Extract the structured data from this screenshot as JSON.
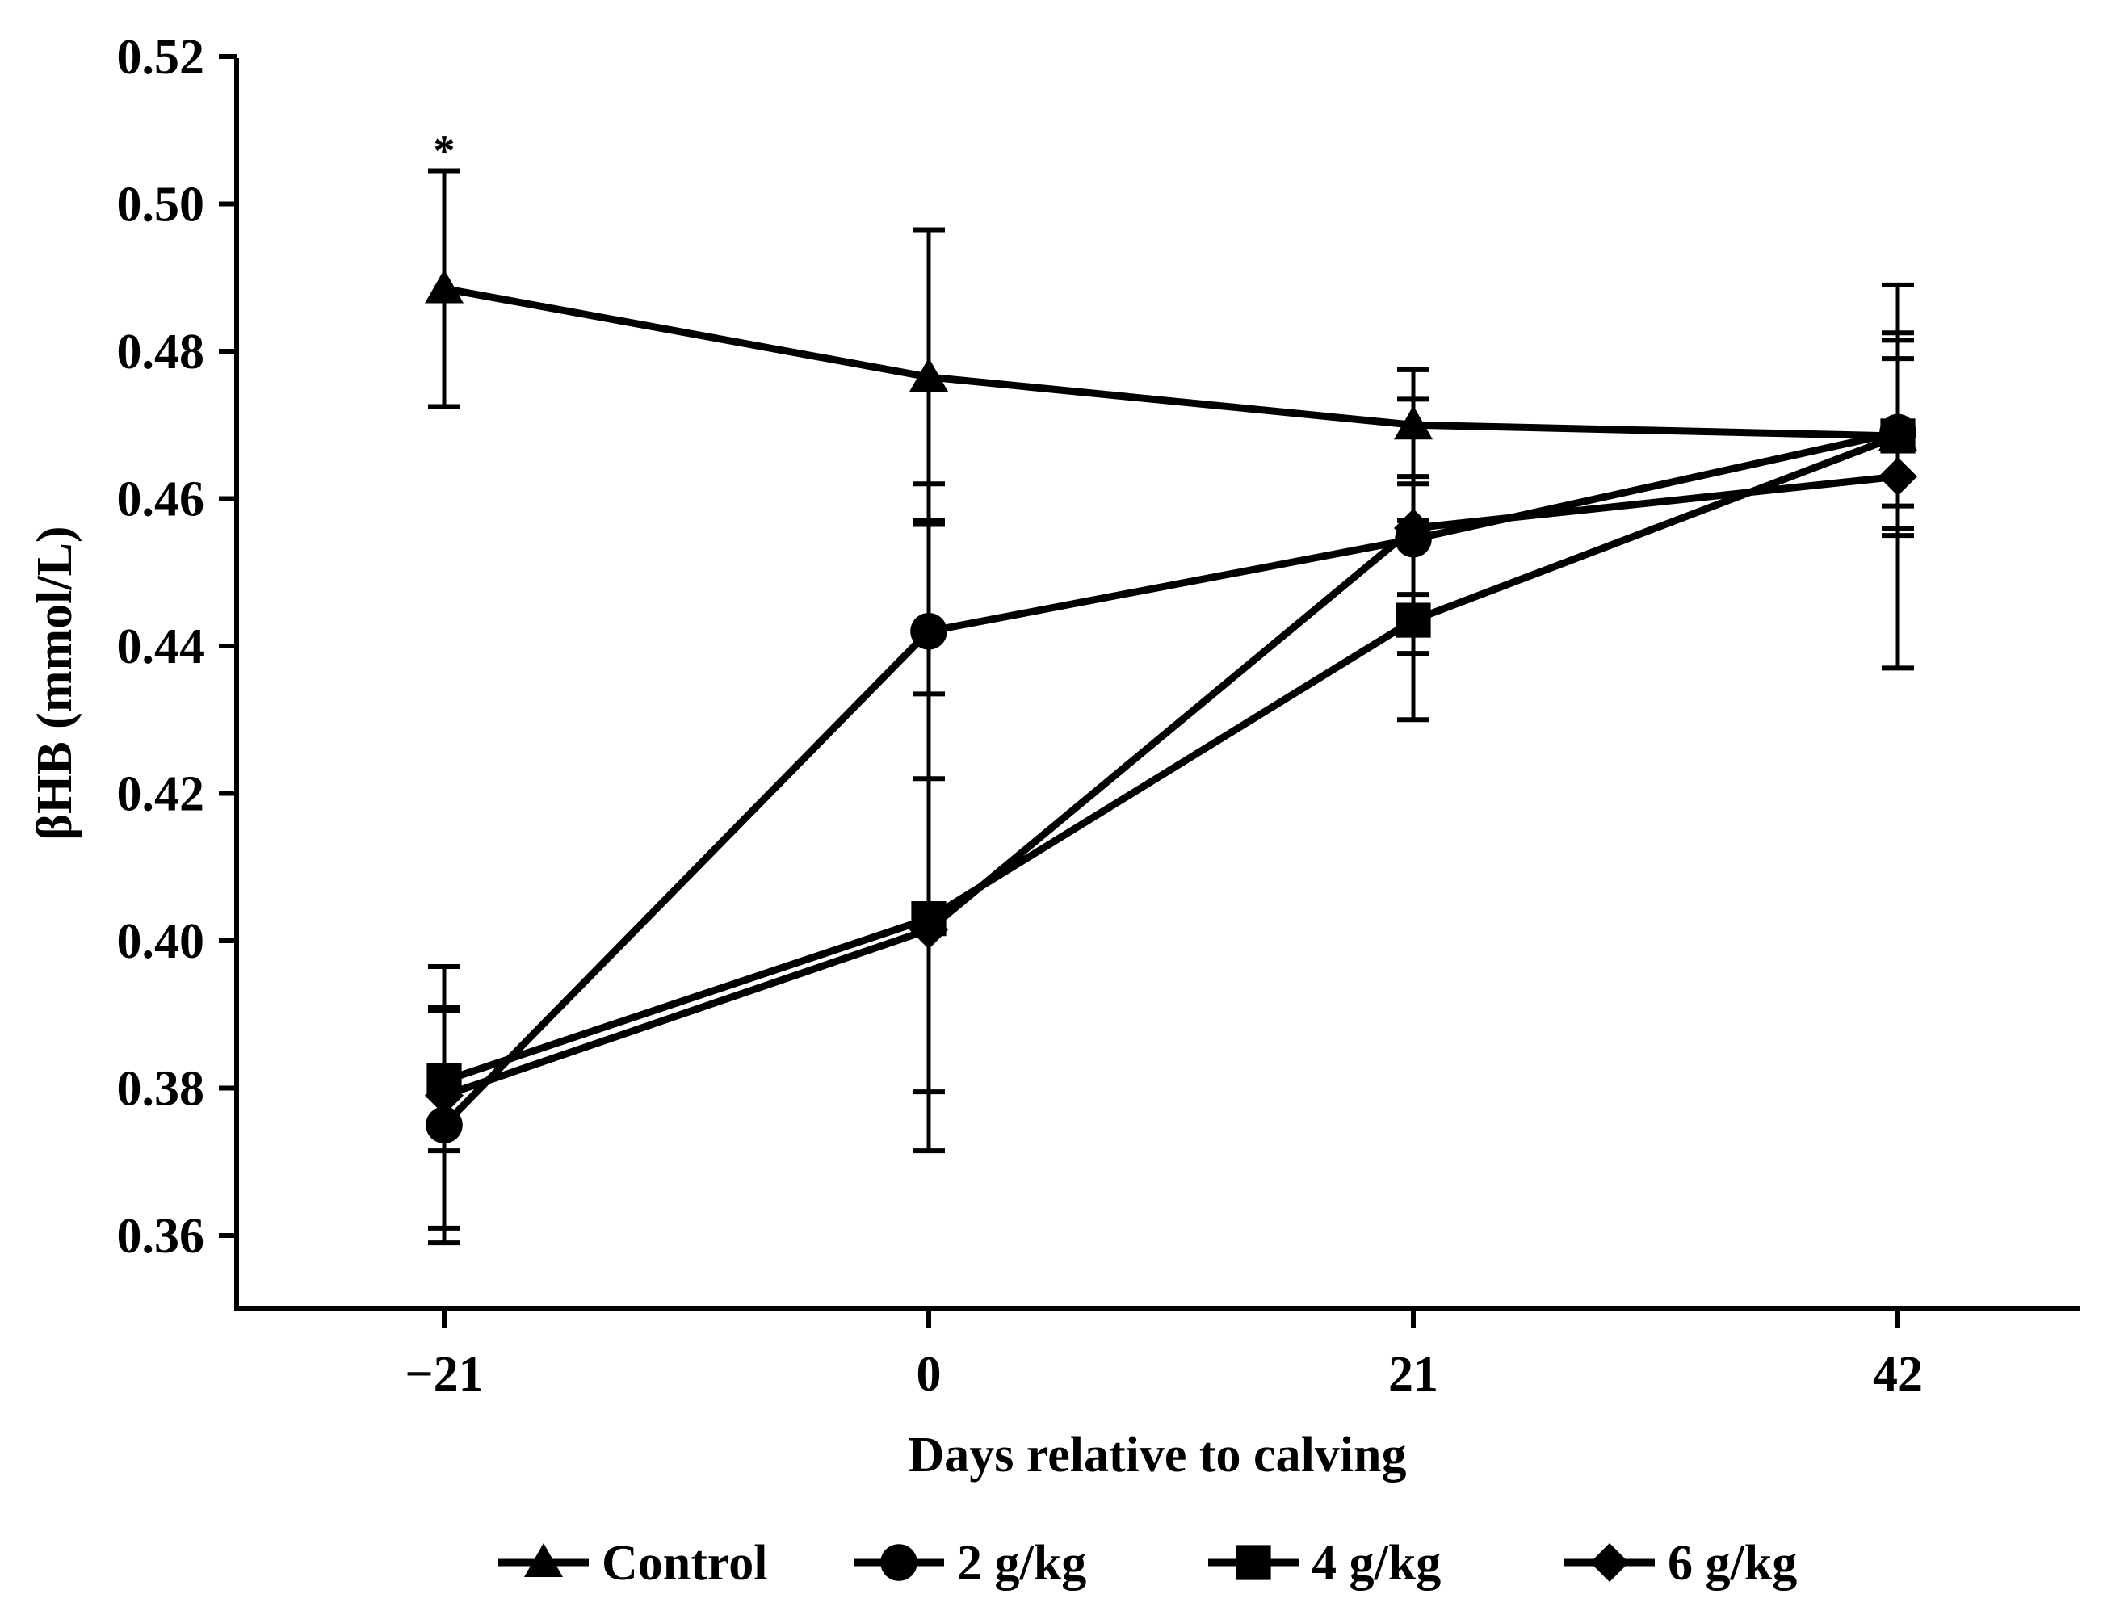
{
  "chart_data": {
    "type": "line",
    "title": "",
    "xlabel": "Days relative to calving",
    "ylabel": "βHB (mmol/L)",
    "x": [
      -21,
      0,
      21,
      42
    ],
    "x_tick_labels": [
      "−21",
      "0",
      "21",
      "42"
    ],
    "xlim": [
      -30,
      50
    ],
    "ylim": [
      0.35,
      0.52
    ],
    "y_ticks": [
      0.36,
      0.38,
      0.4,
      0.42,
      0.44,
      0.46,
      0.48,
      0.5,
      0.52
    ],
    "y_tick_labels": [
      "0.36",
      "0.38",
      "0.40",
      "0.42",
      "0.44",
      "0.46",
      "0.48",
      "0.50",
      "0.52"
    ],
    "grid": false,
    "legend_position": "bottom",
    "series": [
      {
        "name": "Control",
        "marker": "triangle",
        "values": [
          0.4885,
          0.4765,
          0.47,
          0.4685
        ],
        "err_low": [
          0.4725,
          0.4565,
          0.463,
          0.455
        ],
        "err_high": [
          0.5045,
          0.4965,
          0.4775,
          0.4825
        ]
      },
      {
        "name": "2 g/kg",
        "marker": "circle",
        "values": [
          0.375,
          0.442,
          0.4545,
          0.469
        ],
        "err_low": [
          0.359,
          0.422,
          0.447,
          0.459
        ],
        "err_high": [
          0.391,
          0.462,
          0.462,
          0.479
        ]
      },
      {
        "name": "4 g/kg",
        "marker": "square",
        "values": [
          0.381,
          0.403,
          0.4435,
          0.4685
        ],
        "err_low": [
          0.3715,
          0.3795,
          0.43,
          0.456
        ],
        "err_high": [
          0.3905,
          0.4335,
          0.457,
          0.4815
        ]
      },
      {
        "name": "6 g/kg",
        "marker": "diamond",
        "values": [
          0.379,
          0.4015,
          0.456,
          0.463
        ],
        "err_low": [
          0.361,
          0.3715,
          0.439,
          0.437
        ],
        "err_high": [
          0.3965,
          0.457,
          0.4735,
          0.489
        ]
      }
    ],
    "annotations": [
      {
        "text": "*",
        "x": -21,
        "y": 0.5085
      }
    ]
  }
}
